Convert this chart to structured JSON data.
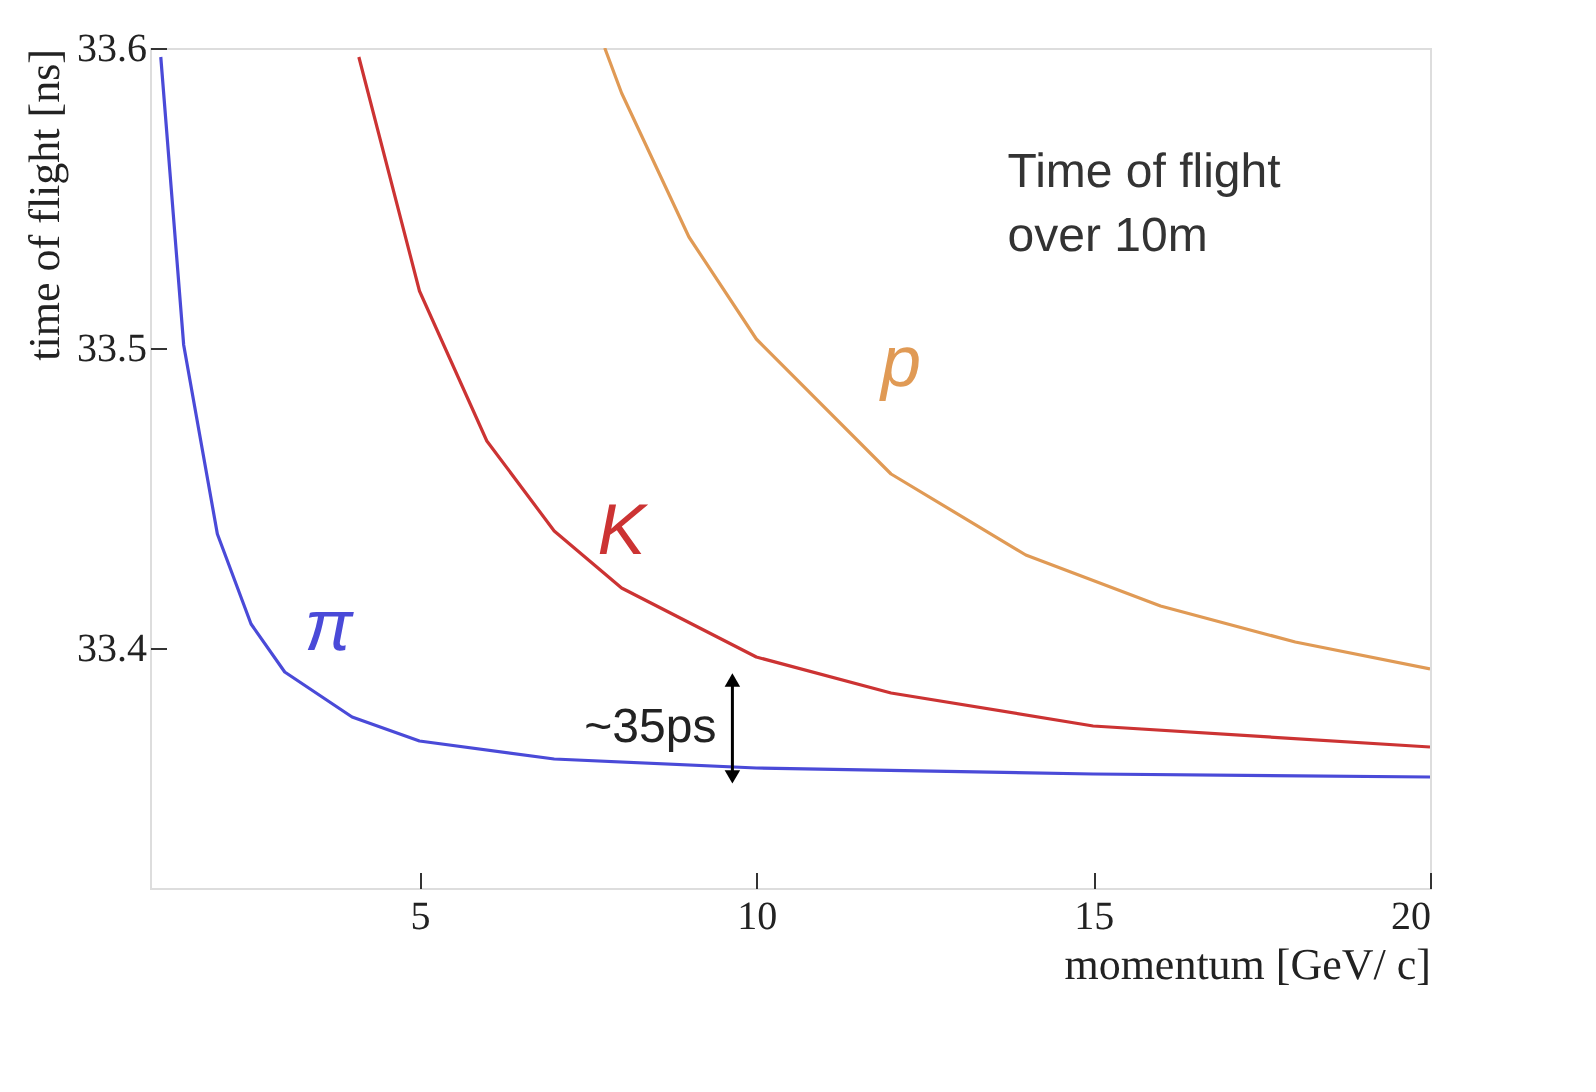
{
  "chart_data": {
    "type": "line",
    "xlabel": "momentum [GeV/ c]",
    "ylabel": "time of flight [ns]",
    "xlim": [
      1,
      20
    ],
    "xticks": [
      5,
      10,
      15,
      20
    ],
    "ylim": [
      33.32,
      33.6
    ],
    "yticks": [
      33.4,
      33.5,
      33.6
    ],
    "grid": false,
    "marker": "none",
    "line_style": "solid",
    "series": [
      {
        "name": "π",
        "color": "#4a4ad8",
        "x": [
          1.16,
          1.5,
          2,
          2.5,
          3,
          4,
          5,
          7,
          10,
          15,
          20
        ],
        "values": [
          33.597,
          33.501,
          33.438,
          33.408,
          33.392,
          33.377,
          33.369,
          33.363,
          33.36,
          33.358,
          33.357
        ]
      },
      {
        "name": "K",
        "color": "#cc3333",
        "x": [
          4.1,
          5,
          6,
          7,
          8,
          10,
          12,
          15,
          20
        ],
        "values": [
          33.597,
          33.519,
          33.469,
          33.439,
          33.42,
          33.397,
          33.385,
          33.374,
          33.367
        ]
      },
      {
        "name": "p",
        "color": "#e09a55",
        "x": [
          7.75,
          8,
          9,
          10,
          12,
          14,
          16,
          18,
          20
        ],
        "values": [
          33.6,
          33.585,
          33.537,
          33.503,
          33.458,
          33.431,
          33.414,
          33.402,
          33.393
        ]
      }
    ],
    "annotations": [
      "Time of flight\nover 10m",
      "~35ps"
    ]
  }
}
